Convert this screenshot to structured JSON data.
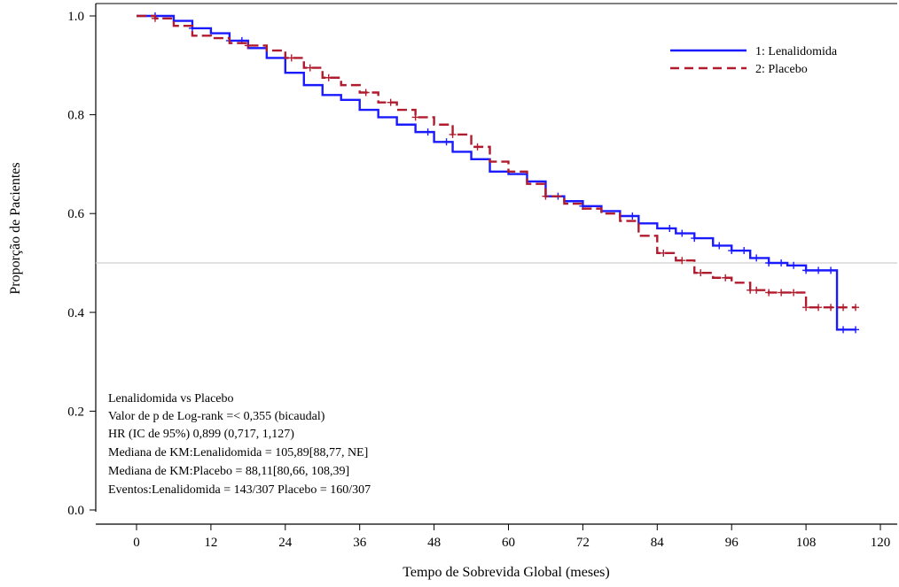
{
  "chart_data": {
    "type": "line",
    "title": "",
    "xlabel": "Tempo de Sobrevida Global (meses)",
    "ylabel": "Proporção de Pacientes",
    "xlim": [
      -8,
      120
    ],
    "ylim": [
      -0.04,
      1.02
    ],
    "x_ticks": [
      0,
      12,
      24,
      36,
      48,
      60,
      72,
      84,
      96,
      108,
      120
    ],
    "y_ticks": [
      "0.0",
      "0.2",
      "0.4",
      "0.6",
      "0.8",
      "1.0"
    ],
    "y_tick_values": [
      0,
      0.2,
      0.4,
      0.6,
      0.8,
      1.0
    ],
    "reference_line_y": 0.5,
    "legend": {
      "position": "top-right"
    },
    "series": [
      {
        "name": "1: Lenalidomida",
        "color": "#1a1aff",
        "dash": "solid",
        "x": [
          0,
          3,
          6,
          9,
          12,
          15,
          18,
          21,
          24,
          27,
          30,
          33,
          36,
          39,
          42,
          45,
          48,
          51,
          54,
          57,
          60,
          63,
          66,
          69,
          72,
          75,
          78,
          81,
          84,
          87,
          90,
          93,
          96,
          99,
          102,
          105,
          108,
          110,
          112,
          113,
          114,
          116
        ],
        "y": [
          1.0,
          1.0,
          0.99,
          0.975,
          0.965,
          0.95,
          0.935,
          0.915,
          0.885,
          0.86,
          0.84,
          0.83,
          0.81,
          0.795,
          0.78,
          0.765,
          0.745,
          0.725,
          0.71,
          0.685,
          0.68,
          0.665,
          0.635,
          0.625,
          0.615,
          0.605,
          0.595,
          0.58,
          0.57,
          0.56,
          0.55,
          0.535,
          0.525,
          0.51,
          0.5,
          0.495,
          0.485,
          0.485,
          0.485,
          0.365,
          0.365,
          0.365
        ],
        "censor_x": [
          3,
          9,
          15,
          17,
          47,
          50,
          68,
          72,
          80,
          86,
          88,
          90,
          94,
          96,
          98,
          100,
          102,
          104,
          106,
          108,
          110,
          112,
          114,
          116
        ]
      },
      {
        "name": "2: Placebo",
        "color": "#b01c2e",
        "dash": "dashed",
        "x": [
          0,
          3,
          6,
          9,
          12,
          15,
          18,
          21,
          24,
          27,
          30,
          33,
          36,
          39,
          42,
          45,
          48,
          51,
          54,
          57,
          60,
          63,
          66,
          69,
          72,
          75,
          78,
          81,
          84,
          87,
          90,
          93,
          96,
          99,
          102,
          105,
          108,
          110,
          112,
          114,
          116
        ],
        "y": [
          1.0,
          0.995,
          0.98,
          0.96,
          0.955,
          0.945,
          0.94,
          0.93,
          0.915,
          0.895,
          0.875,
          0.86,
          0.845,
          0.825,
          0.81,
          0.795,
          0.78,
          0.76,
          0.735,
          0.705,
          0.685,
          0.66,
          0.635,
          0.62,
          0.61,
          0.6,
          0.585,
          0.555,
          0.52,
          0.505,
          0.48,
          0.47,
          0.46,
          0.445,
          0.44,
          0.44,
          0.41,
          0.41,
          0.41,
          0.41,
          0.41
        ],
        "censor_x": [
          3,
          18,
          25,
          28,
          31,
          37,
          41,
          45,
          51,
          55,
          66,
          85,
          88,
          91,
          95,
          99,
          100,
          102,
          104,
          106,
          108,
          110,
          112,
          114,
          116
        ]
      }
    ],
    "annotation_lines": [
      "Lenalidomida vs Placebo",
      "Valor de p de Log-rank =< 0,355 (bicaudal)",
      "HR (IC de 95%) 0,899 (0,717, 1,127)",
      "Mediana de KM:Lenalidomida = 105,89[88,77, NE]",
      "Mediana de KM:Placebo = 88,11[80,66, 108,39]",
      "Eventos:Lenalidomida = 143/307 Placebo = 160/307"
    ]
  }
}
